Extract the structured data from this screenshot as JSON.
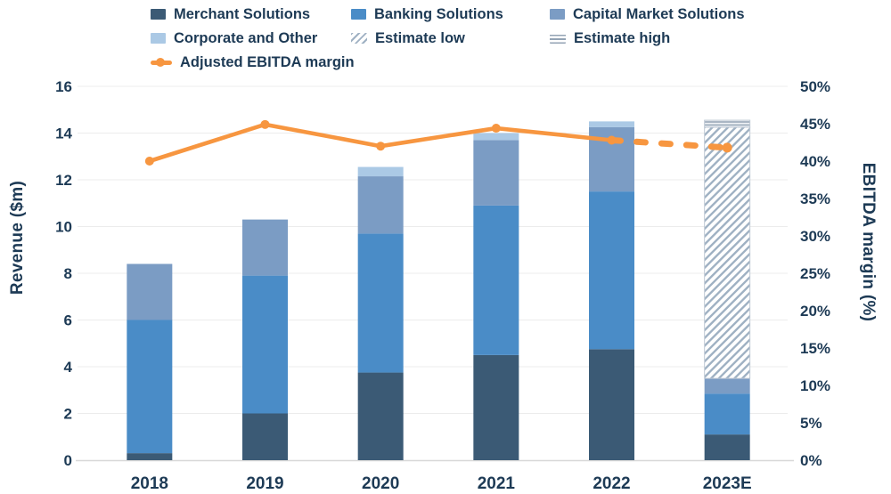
{
  "colors": {
    "merchant": "#3b5a75",
    "banking": "#4a8cc7",
    "capital": "#7b9cc4",
    "corporate": "#abc9e5",
    "estimate_low": "#9fb1c3",
    "estimate_high": "#93a3b4",
    "estimate_high_bg": "#eef1f5",
    "margin": "#f79640",
    "text": "#1d3a55",
    "grid": "#ececec",
    "baseline": "#d8d8d8"
  },
  "legend": {
    "items": [
      {
        "label": "Merchant Solutions",
        "key": "merchant",
        "row": 0,
        "col": 0,
        "swatch": "solid"
      },
      {
        "label": "Banking Solutions",
        "key": "banking",
        "row": 0,
        "col": 1,
        "swatch": "solid"
      },
      {
        "label": "Capital Market Solutions",
        "key": "capital",
        "row": 0,
        "col": 2,
        "swatch": "solid"
      },
      {
        "label": "Corporate and Other",
        "key": "corporate",
        "row": 1,
        "col": 0,
        "swatch": "solid"
      },
      {
        "label": "Estimate low",
        "key": "estimate_low",
        "row": 1,
        "col": 1,
        "swatch": "hatch_diagonal"
      },
      {
        "label": "Estimate high",
        "key": "estimate_high",
        "row": 1,
        "col": 2,
        "swatch": "hatch_horizontal"
      },
      {
        "label": "Adjusted EBITDA margin",
        "key": "margin",
        "row": 2,
        "col": 0,
        "swatch": "line_marker"
      }
    ]
  },
  "chart_data": {
    "type": "stacked-bar-with-line-dual-axis",
    "categories": [
      "2018",
      "2019",
      "2020",
      "2021",
      "2022",
      "2023E"
    ],
    "series": [
      {
        "name": "Merchant Solutions",
        "key": "merchant",
        "kind": "bar",
        "axis": "left",
        "values": [
          0.3,
          2.0,
          3.75,
          4.5,
          4.75,
          1.1
        ]
      },
      {
        "name": "Banking Solutions",
        "key": "banking",
        "kind": "bar",
        "axis": "left",
        "values": [
          5.7,
          5.9,
          5.95,
          6.4,
          6.75,
          1.75
        ]
      },
      {
        "name": "Capital Market Solutions",
        "key": "capital",
        "kind": "bar",
        "axis": "left",
        "values": [
          2.4,
          2.4,
          2.45,
          2.8,
          2.75,
          0.65
        ]
      },
      {
        "name": "Corporate and Other",
        "key": "corporate",
        "kind": "bar",
        "axis": "left",
        "values": [
          0,
          0,
          0.4,
          0.3,
          0.25,
          0
        ]
      },
      {
        "name": "Estimate low",
        "key": "estimate_low",
        "kind": "bar",
        "axis": "left",
        "fill": "pattern_diagonal",
        "values": [
          0,
          0,
          0,
          0,
          0,
          10.75
        ]
      },
      {
        "name": "Estimate high",
        "key": "estimate_high",
        "kind": "bar",
        "axis": "left",
        "fill": "pattern_horizontal",
        "values": [
          0,
          0,
          0,
          0,
          0,
          0.3
        ]
      },
      {
        "name": "Adjusted EBITDA margin",
        "key": "margin",
        "kind": "line",
        "axis": "right",
        "unit": "%",
        "dashed_from_index": 4,
        "values": [
          40.0,
          44.9,
          42.0,
          44.4,
          42.8,
          41.8
        ]
      }
    ],
    "bar_totals": [
      8.4,
      10.3,
      12.55,
      14.0,
      14.5,
      14.55
    ],
    "ylabel_left": "Revenue ($m)",
    "ylabel_right": "EBITDA margin (%)",
    "ylim_left": [
      0,
      16
    ],
    "ylim_right": [
      0,
      50
    ],
    "yticks_left": [
      0,
      2,
      4,
      6,
      8,
      10,
      12,
      14,
      16
    ],
    "yticks_right": [
      "0%",
      "5%",
      "10%",
      "15%",
      "20%",
      "25%",
      "30%",
      "35%",
      "40%",
      "45%",
      "50%"
    ],
    "grid": true,
    "legend_position": "top"
  }
}
